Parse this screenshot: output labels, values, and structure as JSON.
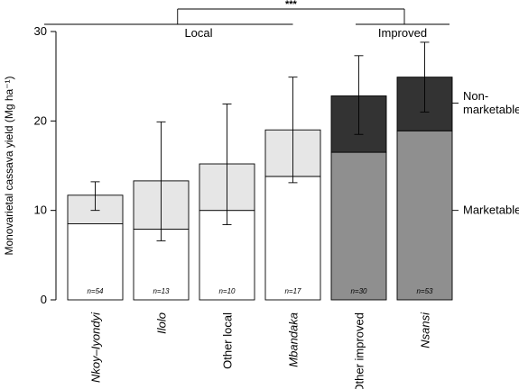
{
  "chart_data": {
    "type": "bar",
    "stacked": true,
    "ylabel": "Monovarietal cassava yield (Mg ha⁻¹)",
    "ylim": [
      0,
      30
    ],
    "yticks": [
      "0",
      "10",
      "20",
      "30"
    ],
    "categories": [
      "Nkoy–Iyondyi",
      "Ilolo",
      "Other local",
      "Mbandaka",
      "Other improved",
      "Nsansi"
    ],
    "italic_categories": [
      true,
      true,
      false,
      true,
      false,
      true
    ],
    "groups": [
      {
        "label": "Local",
        "categories": [
          0,
          1,
          2,
          3
        ]
      },
      {
        "label": "Improved",
        "categories": [
          4,
          5
        ]
      }
    ],
    "significance": "***",
    "series": [
      {
        "name": "Marketable",
        "values": [
          8.5,
          7.9,
          10.0,
          13.8,
          16.5,
          18.9
        ],
        "colors": [
          "#ffffff",
          "#ffffff",
          "#ffffff",
          "#ffffff",
          "#8f8f8f",
          "#8f8f8f"
        ]
      },
      {
        "name": "Non-marketable",
        "values": [
          3.2,
          5.4,
          5.2,
          5.2,
          6.3,
          6.0
        ],
        "colors": [
          "#e6e6e6",
          "#e6e6e6",
          "#e6e6e6",
          "#e6e6e6",
          "#333333",
          "#333333"
        ]
      }
    ],
    "totals": [
      11.7,
      13.3,
      15.2,
      19.0,
      22.8,
      24.9
    ],
    "error_bars": {
      "low": [
        10.0,
        6.6,
        8.4,
        13.1,
        18.5,
        21.0
      ],
      "high": [
        13.2,
        19.9,
        21.9,
        24.9,
        27.3,
        28.8
      ]
    },
    "n_labels": [
      "n=54",
      "n=13",
      "n=10",
      "n=17",
      "n=30",
      "n=53"
    ],
    "side_labels": [
      {
        "lines": [
          "Non-",
          "marketable"
        ],
        "at": 22.0
      },
      {
        "lines": [
          "Marketable"
        ],
        "at": 10.0
      }
    ]
  }
}
